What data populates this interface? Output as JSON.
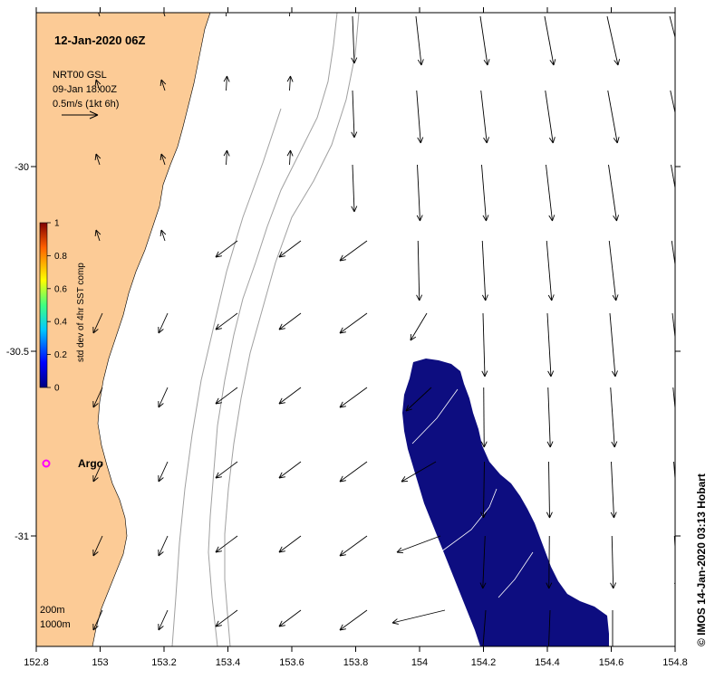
{
  "title": "12-Jan-2020 06Z",
  "info": {
    "product": "NRT00 GSL",
    "analysis_time": "09-Jan 18:00Z",
    "scale_label": "0.5m/s (1kt 6h)"
  },
  "depth_legend": [
    "200m",
    "1000m"
  ],
  "argo_label": "Argo",
  "credit": "© IMOS 14-Jan-2020 03:13 Hobart",
  "colorbar": {
    "label": "std dev of 4hr SST comp",
    "ticks": [
      "0",
      "0.2",
      "0.4",
      "0.6",
      "0.8",
      "1"
    ]
  },
  "axes": {
    "x_ticks": [
      "152.8",
      "153",
      "153.2",
      "153.4",
      "153.6",
      "153.8",
      "154",
      "154.2",
      "154.4",
      "154.6",
      "154.8"
    ],
    "y_ticks": [
      "-30",
      "-30.5",
      "-31"
    ]
  },
  "colors": {
    "land": "#fccb96",
    "sst_patch": "#0d0d80",
    "argo": "#ff00ff",
    "isobath": "#a0a0a0"
  }
}
